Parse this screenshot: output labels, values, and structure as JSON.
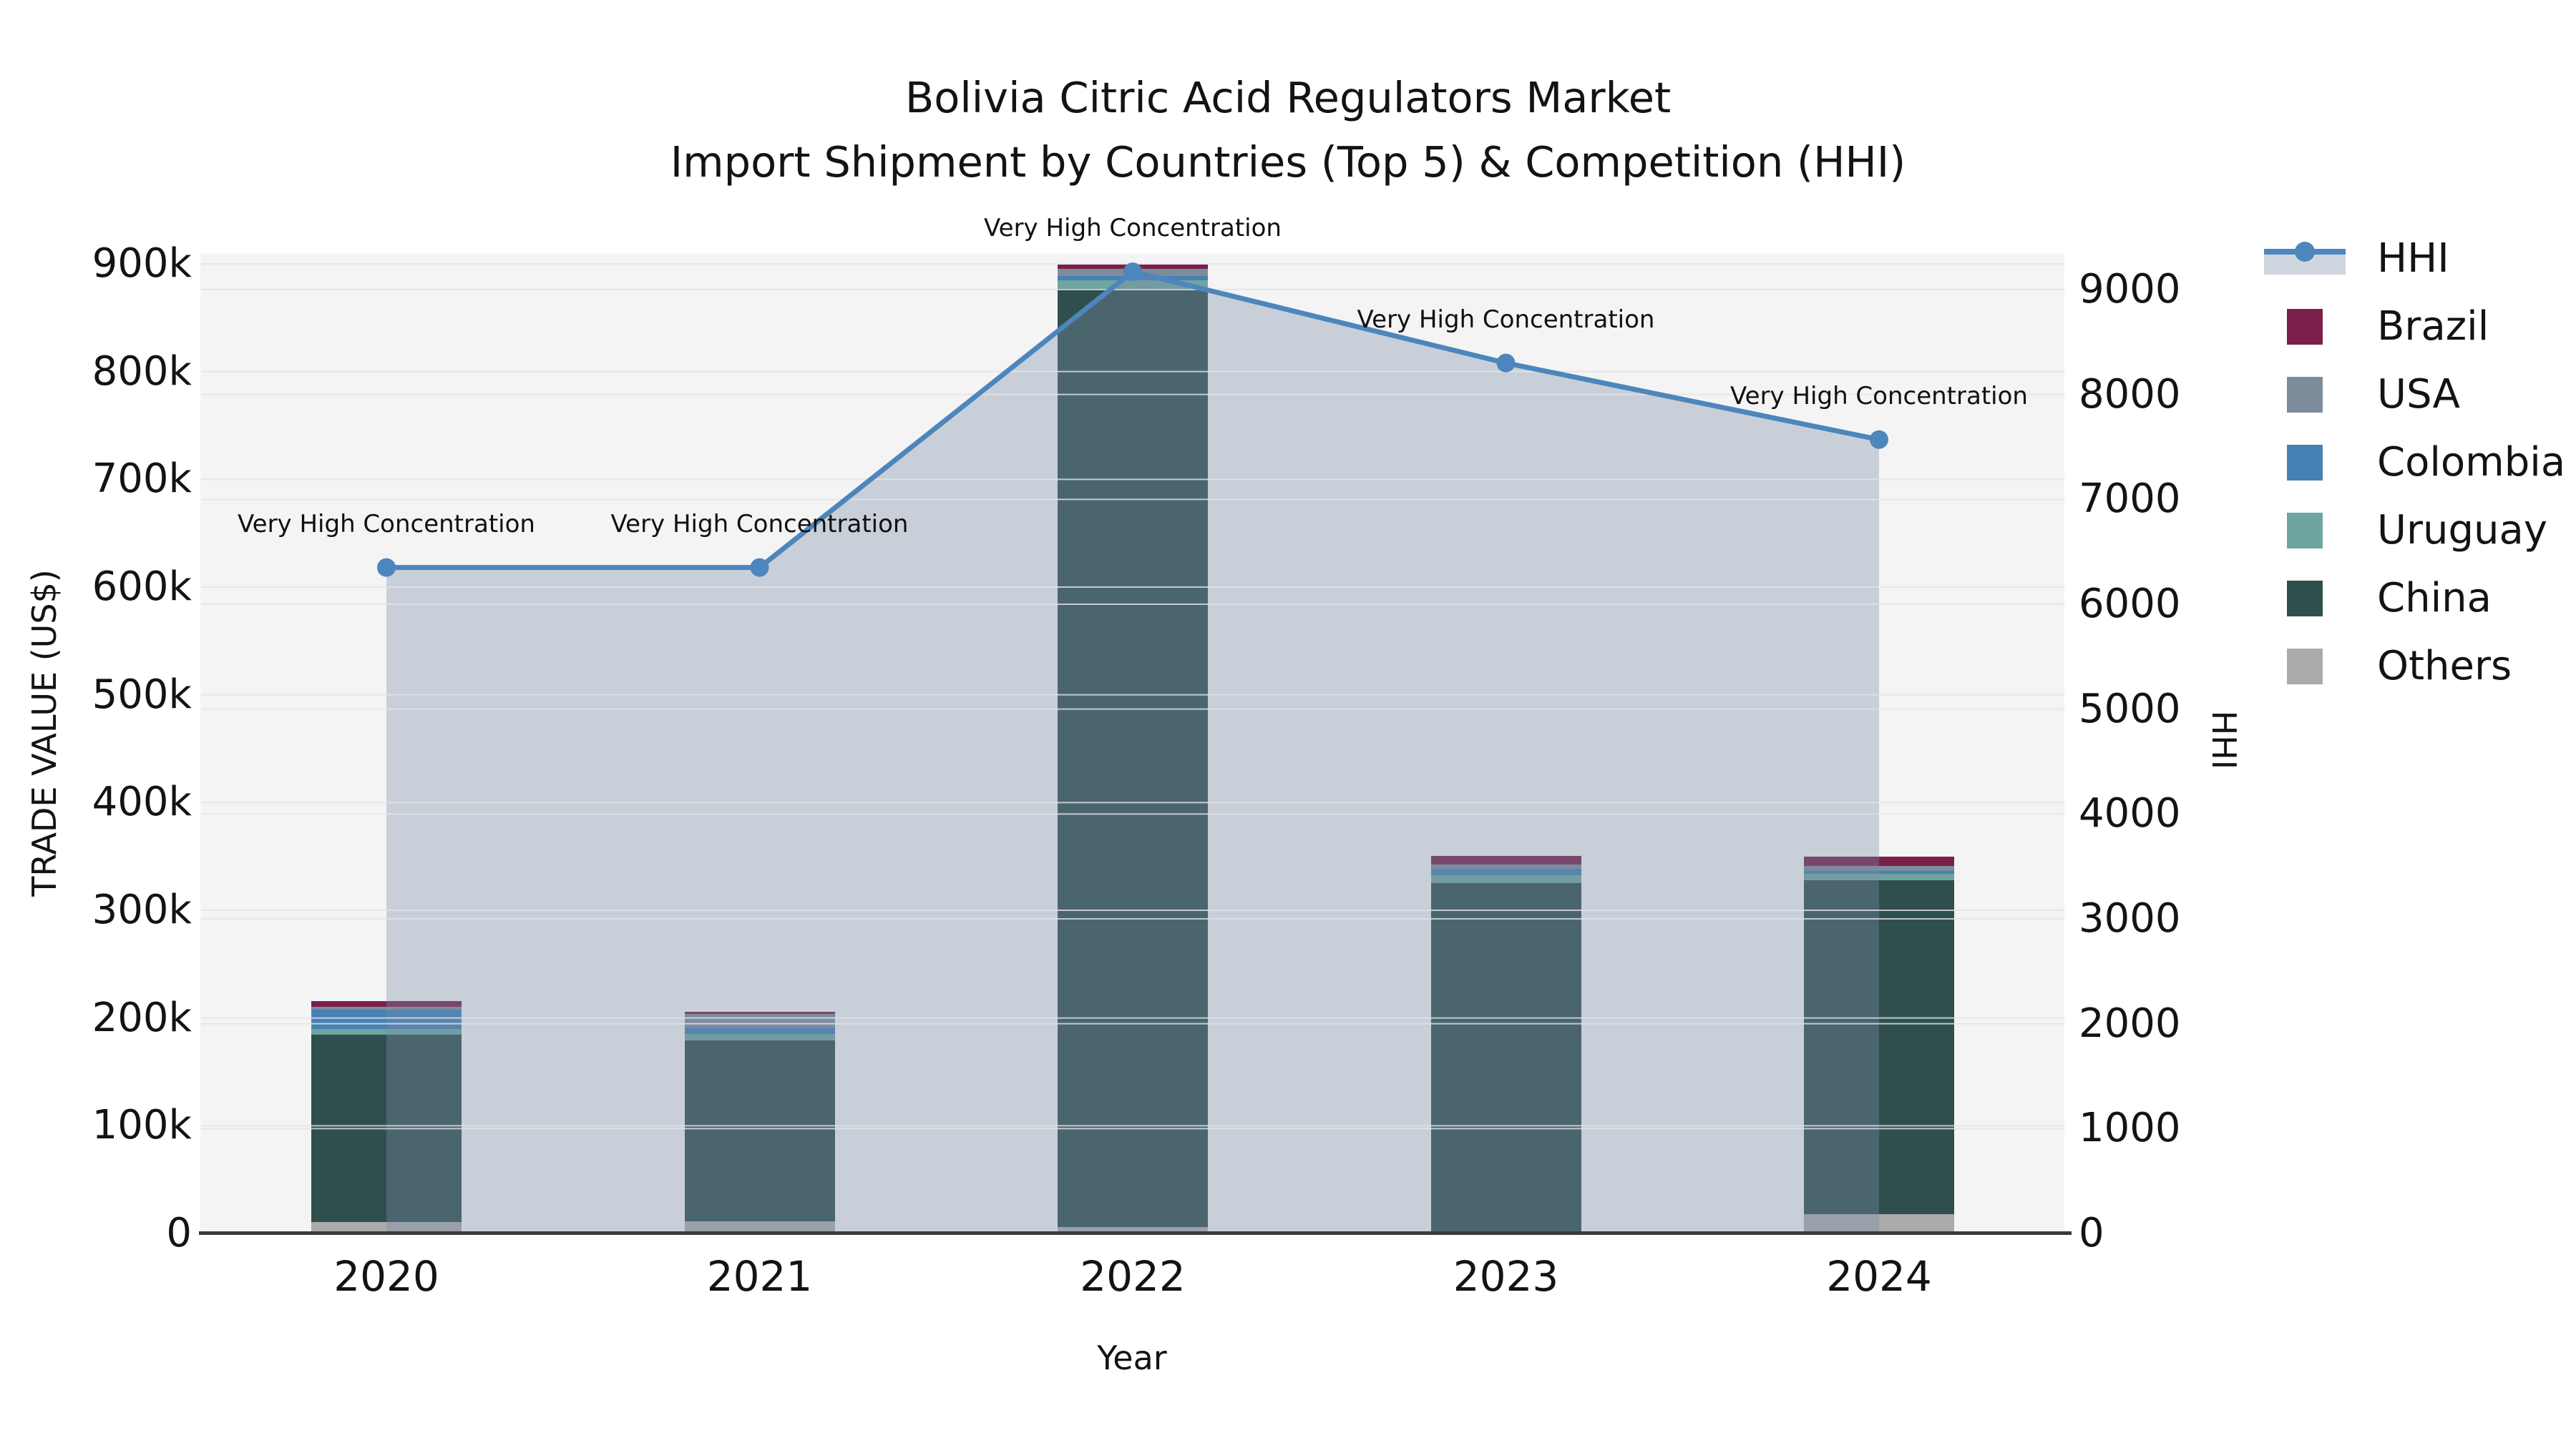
{
  "chart_data": {
    "type": "combo-stacked-bar-line",
    "title": "Bolivia Citric Acid Regulators Market",
    "subtitle": "Import Shipment by Countries (Top 5) & Competition (HHI)",
    "xlabel": "Year",
    "ylabel_left": "TRADE VALUE (US$)",
    "ylabel_right": "HHI",
    "categories": [
      "2020",
      "2021",
      "2022",
      "2023",
      "2024"
    ],
    "bar_series_bottom_to_top": [
      {
        "name": "Others",
        "color": "#ABABAB",
        "values": [
          10500,
          11000,
          6000,
          1500,
          18000
        ]
      },
      {
        "name": "China",
        "color": "#2F4F4D",
        "values": [
          174000,
          168000,
          871000,
          324000,
          310000
        ]
      },
      {
        "name": "Uruguay",
        "color": "#6FA5A0",
        "values": [
          5500,
          6500,
          7500,
          7000,
          6000
        ]
      },
      {
        "name": "Colombia",
        "color": "#4681B4",
        "values": [
          17500,
          5500,
          4500,
          6000,
          2500
        ]
      },
      {
        "name": "USA",
        "color": "#7D8C9B",
        "values": [
          3000,
          13000,
          6500,
          4000,
          4500
        ]
      },
      {
        "name": "Brazil",
        "color": "#7A204B",
        "values": [
          5500,
          2000,
          4000,
          8000,
          8500
        ]
      }
    ],
    "line_series": {
      "name": "HHI",
      "color": "#4C86BC",
      "area_color": "rgba(122,140,166,0.36)",
      "values": [
        6350,
        6350,
        9170,
        8300,
        7570
      ]
    },
    "annotations": [
      "Very High Concentration",
      "Very High Concentration",
      "Very High Concentration",
      "Very High Concentration",
      "Very High Concentration"
    ],
    "left_axis": {
      "tick_values": [
        0,
        100000,
        200000,
        300000,
        400000,
        500000,
        600000,
        700000,
        800000,
        900000
      ],
      "tick_labels": [
        "0",
        "100k",
        "200k",
        "300k",
        "400k",
        "500k",
        "600k",
        "700k",
        "800k",
        "900k"
      ]
    },
    "right_axis": {
      "tick_values": [
        0,
        1000,
        2000,
        3000,
        4000,
        5000,
        6000,
        7000,
        8000,
        9000
      ],
      "tick_labels": [
        "0",
        "1000",
        "2000",
        "3000",
        "4000",
        "5000",
        "6000",
        "7000",
        "8000",
        "9000"
      ]
    },
    "legend_order": [
      "HHI",
      "Brazil",
      "USA",
      "Colombia",
      "Uruguay",
      "China",
      "Others"
    ],
    "plot_bg": "#f4f4f5",
    "grid_color": "#e2e4e8",
    "axis_line_color": "#3a3a3a"
  }
}
